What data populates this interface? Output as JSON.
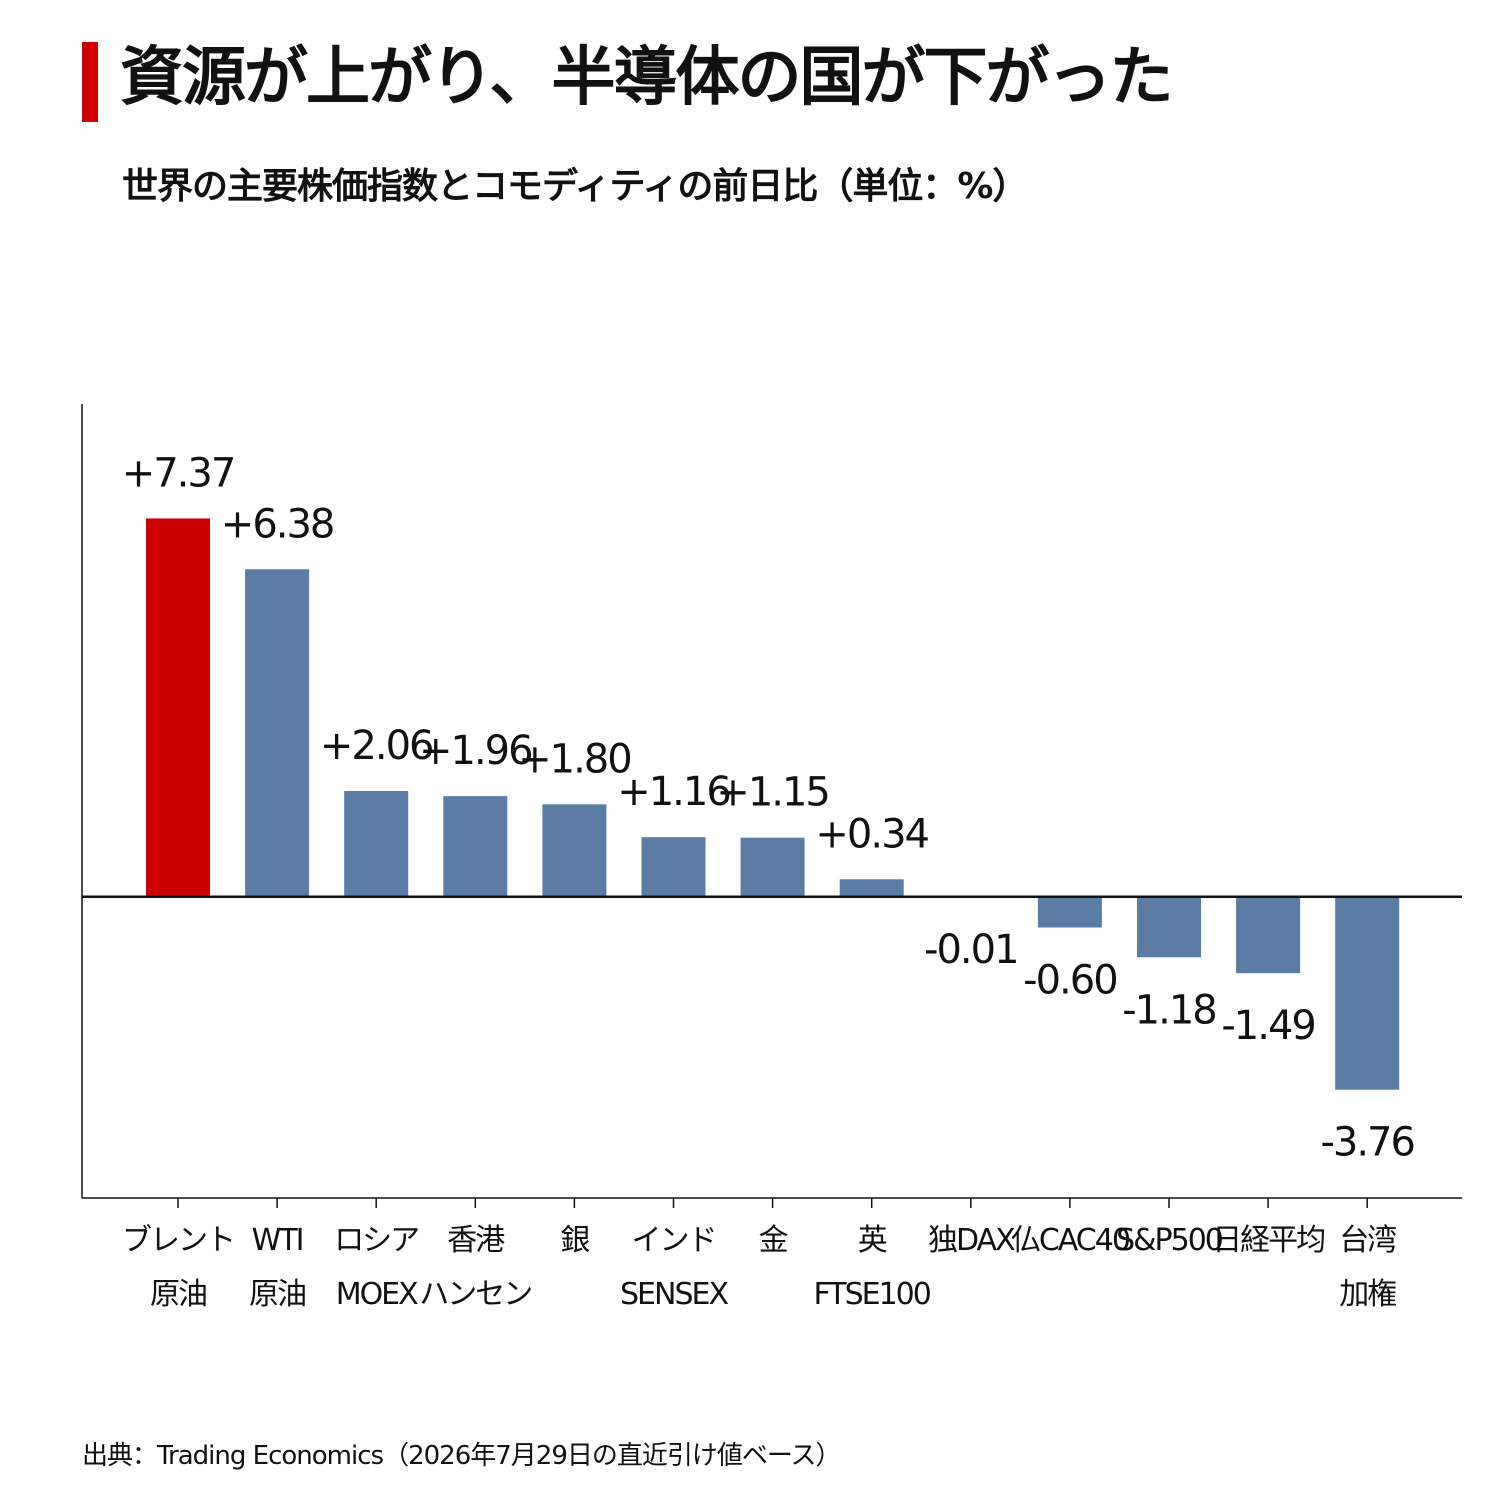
{
  "header": {
    "title": "資源が上がり、半導体の国が下がった",
    "subtitle": "世界の主要株価指数とコモディティの前日比（単位：%）"
  },
  "footer": {
    "source": "出典：Trading Economics（2026年7月29日の直近引け値ベース）"
  },
  "colors": {
    "accent": "#cc0000",
    "bar": "#5a7ca5",
    "axis": "#111111"
  },
  "chart_data": {
    "type": "bar",
    "categories": [
      [
        "ブレント",
        "原油"
      ],
      [
        "WTI",
        "原油"
      ],
      [
        "ロシア",
        "MOEX"
      ],
      [
        "香港",
        "ハンセン"
      ],
      [
        "銀"
      ],
      [
        "インド",
        "SENSEX"
      ],
      [
        "金"
      ],
      [
        "英",
        "FTSE100"
      ],
      [
        "独DAX"
      ],
      [
        "仏CAC40"
      ],
      [
        "S&P500"
      ],
      [
        "日経平均"
      ],
      [
        "台湾",
        "加権"
      ]
    ],
    "values": [
      7.37,
      6.38,
      2.06,
      1.96,
      1.8,
      1.16,
      1.15,
      0.34,
      -0.01,
      -0.6,
      -1.18,
      -1.49,
      -3.76
    ],
    "data_labels": [
      "+7.37",
      "+6.38",
      "+2.06",
      "+1.96",
      "+1.80",
      "+1.16",
      "+1.15",
      "+0.34",
      "-0.01",
      "-0.60",
      "-1.18",
      "-1.49",
      "-3.76"
    ],
    "highlight_index": 0,
    "ylim": [
      -5.87,
      9.6
    ],
    "grid": false,
    "legend": "none",
    "xlabel": "",
    "ylabel": ""
  }
}
